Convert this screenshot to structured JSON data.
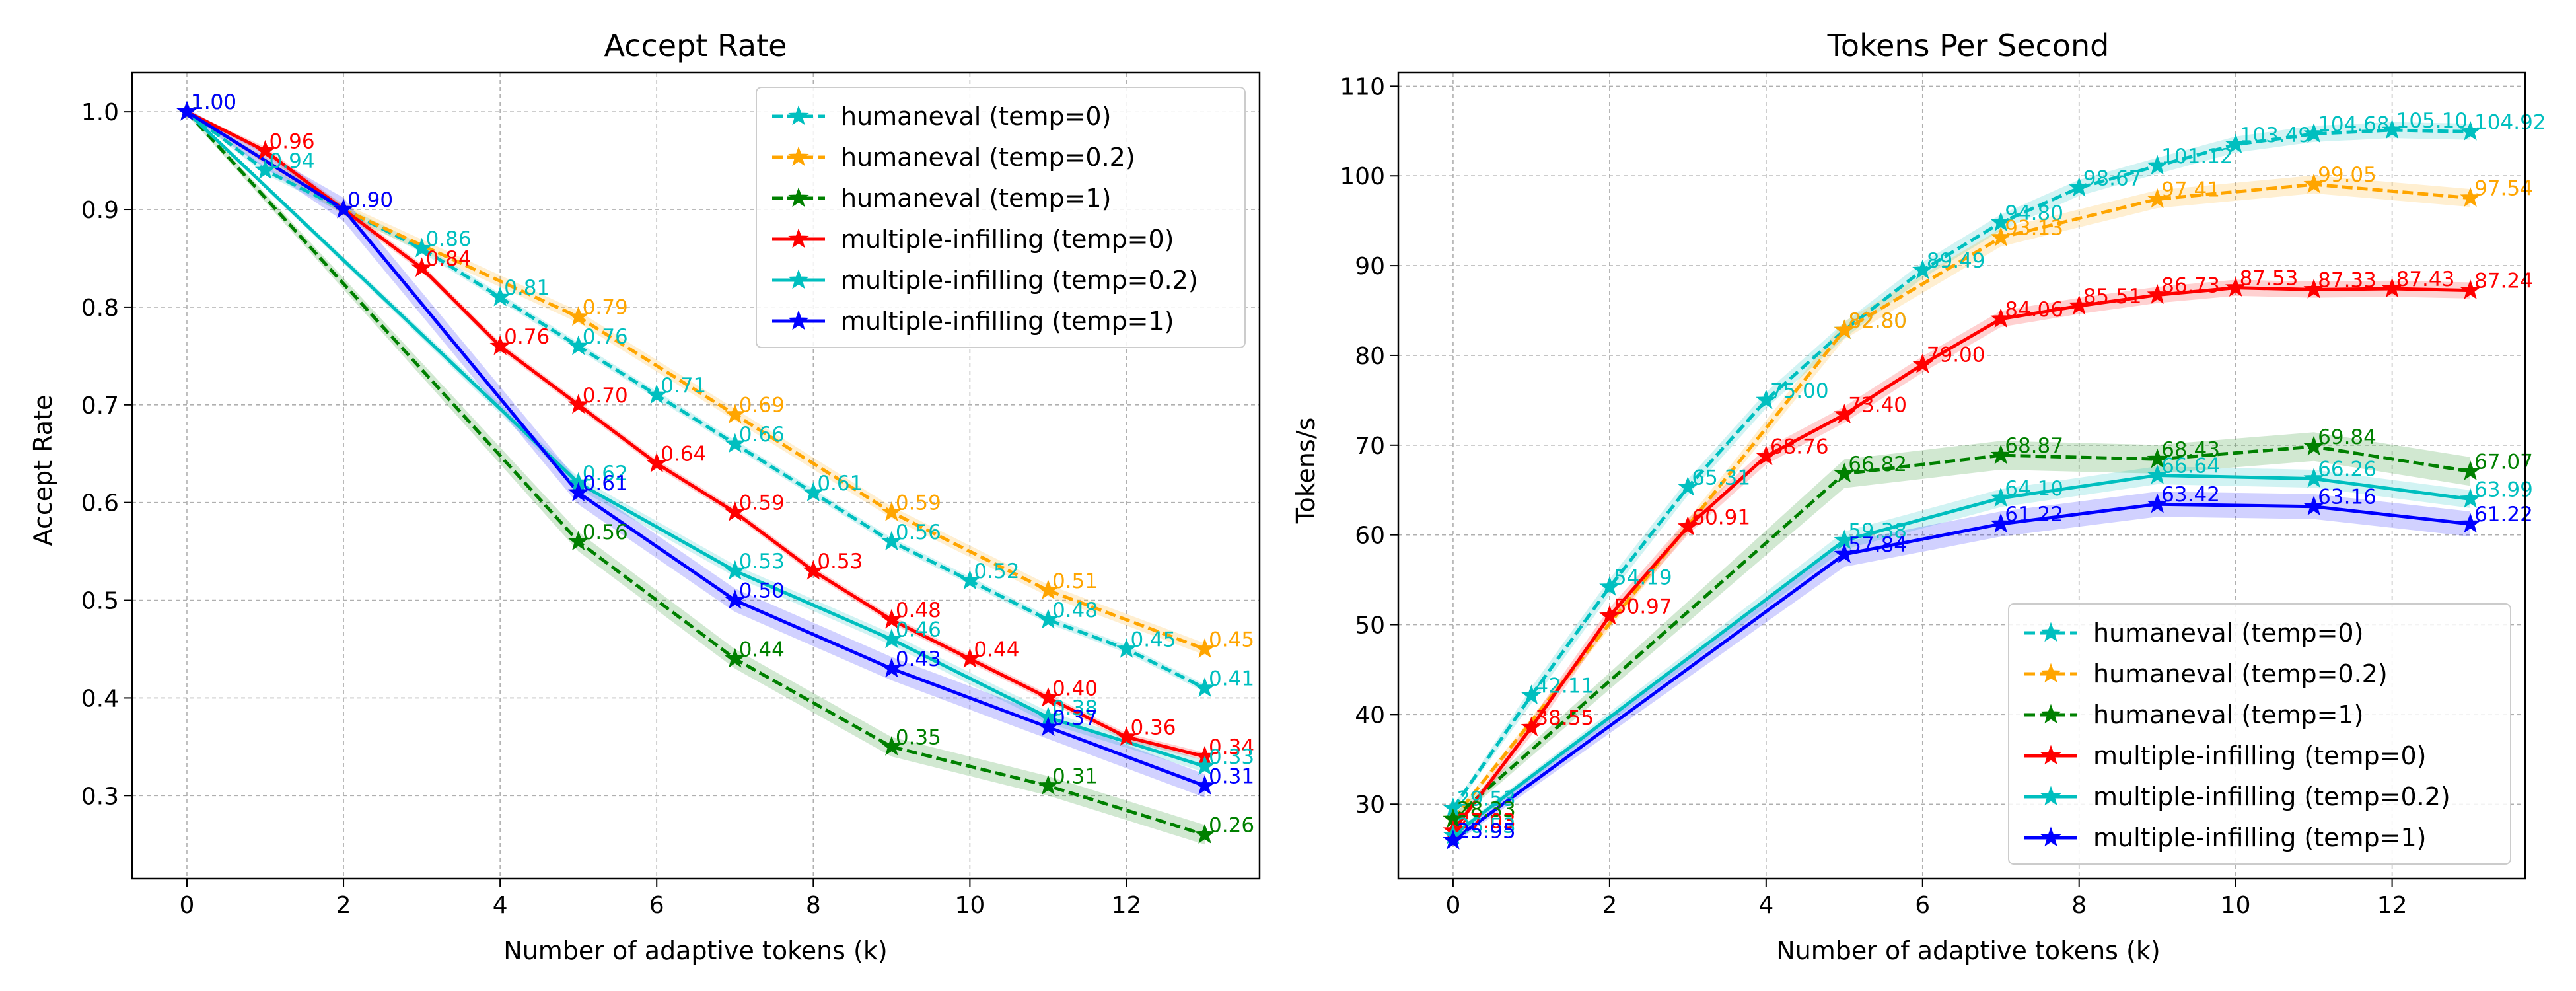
{
  "chart_data": [
    {
      "type": "line",
      "title": "Accept Rate",
      "xlabel": "Number of adaptive tokens (k)",
      "ylabel": "Accept Rate",
      "xlim": [
        -0.7,
        13.7
      ],
      "ylim": [
        0.215,
        1.04
      ],
      "xticks": [
        0,
        2,
        4,
        6,
        8,
        10,
        12
      ],
      "yticks": [
        0.3,
        0.4,
        0.5,
        0.6,
        0.7,
        0.8,
        0.9,
        1.0
      ],
      "ytick_format": "1",
      "grid": true,
      "legend_position": "upper-right",
      "label_format": 2,
      "series": [
        {
          "name": "humaneval (temp=0)",
          "color": "#00bfbf",
          "dashed": true,
          "x": [
            0,
            1,
            3,
            4,
            5,
            6,
            7,
            8,
            9,
            10,
            11,
            12,
            13
          ],
          "y": [
            1.0,
            0.94,
            0.86,
            0.81,
            0.76,
            0.71,
            0.66,
            0.61,
            0.56,
            0.52,
            0.48,
            0.45,
            0.41
          ],
          "band": 0.004
        },
        {
          "name": "humaneval (temp=0.2)",
          "color": "#ffa500",
          "dashed": true,
          "x": [
            0,
            2,
            5,
            7,
            9,
            11,
            13
          ],
          "y": [
            1.0,
            0.9,
            0.79,
            0.69,
            0.59,
            0.51,
            0.45
          ],
          "band": 0.006
        },
        {
          "name": "humaneval (temp=1)",
          "color": "#008000",
          "dashed": true,
          "x": [
            0,
            5,
            7,
            9,
            11,
            13
          ],
          "y": [
            1.0,
            0.56,
            0.44,
            0.35,
            0.31,
            0.26
          ],
          "band": 0.01
        },
        {
          "name": "multiple-infilling (temp=0)",
          "color": "#ff0000",
          "dashed": false,
          "x": [
            0,
            1,
            3,
            4,
            5,
            6,
            7,
            8,
            9,
            10,
            11,
            12,
            13
          ],
          "y": [
            1.0,
            0.96,
            0.84,
            0.76,
            0.7,
            0.64,
            0.59,
            0.53,
            0.48,
            0.44,
            0.4,
            0.36,
            0.34
          ],
          "band": 0.004
        },
        {
          "name": "multiple-infilling (temp=0.2)",
          "color": "#00bfbf",
          "dashed": false,
          "x": [
            0,
            5,
            7,
            9,
            11,
            13
          ],
          "y": [
            1.0,
            0.62,
            0.53,
            0.46,
            0.38,
            0.33
          ],
          "band": 0.006
        },
        {
          "name": "multiple-infilling (temp=1)",
          "color": "#0000ff",
          "dashed": false,
          "x": [
            0,
            2,
            5,
            7,
            9,
            11,
            13
          ],
          "y": [
            1.0,
            0.9,
            0.61,
            0.5,
            0.43,
            0.37,
            0.31
          ],
          "band": 0.012
        }
      ]
    },
    {
      "type": "line",
      "title": "Tokens Per Second",
      "xlabel": "Number of adaptive tokens (k)",
      "ylabel": "Tokens/s",
      "xlim": [
        -0.7,
        13.7
      ],
      "ylim": [
        21.7,
        111.5
      ],
      "xticks": [
        0,
        2,
        4,
        6,
        8,
        10,
        12
      ],
      "yticks": [
        30,
        40,
        50,
        60,
        70,
        80,
        90,
        100,
        110
      ],
      "ytick_format": "0",
      "grid": true,
      "legend_position": "lower-right",
      "label_format": 2,
      "series": [
        {
          "name": "humaneval (temp=0)",
          "color": "#00bfbf",
          "dashed": true,
          "x": [
            0,
            1,
            2,
            3,
            4,
            5,
            6,
            7,
            8,
            9,
            10,
            11,
            12,
            13
          ],
          "y": [
            29.53,
            42.11,
            54.19,
            65.31,
            75.0,
            82.8,
            89.49,
            94.8,
            98.67,
            101.12,
            103.49,
            104.68,
            105.1,
            104.92
          ],
          "band": 0.9
        },
        {
          "name": "humaneval (temp=0.2)",
          "color": "#ffa500",
          "dashed": true,
          "x": [
            0,
            5,
            7,
            9,
            11,
            13
          ],
          "y": [
            28.33,
            82.8,
            93.13,
            97.41,
            99.05,
            97.54
          ],
          "band": 1.0
        },
        {
          "name": "humaneval (temp=1)",
          "color": "#008000",
          "dashed": true,
          "x": [
            0,
            5,
            7,
            9,
            11,
            13
          ],
          "y": [
            28.33,
            66.82,
            68.87,
            68.43,
            69.84,
            67.07
          ],
          "band": 1.6
        },
        {
          "name": "multiple-infilling (temp=0)",
          "color": "#ff0000",
          "dashed": false,
          "x": [
            0,
            1,
            2,
            3,
            4,
            5,
            6,
            7,
            8,
            9,
            10,
            11,
            12,
            13
          ],
          "y": [
            27.03,
            38.55,
            50.97,
            60.91,
            68.76,
            73.4,
            79.0,
            84.06,
            85.51,
            86.73,
            87.53,
            87.33,
            87.43,
            87.24
          ],
          "band": 0.9
        },
        {
          "name": "multiple-infilling (temp=0.2)",
          "color": "#00bfbf",
          "dashed": false,
          "x": [
            0,
            5,
            7,
            9,
            11,
            13
          ],
          "y": [
            26.53,
            59.38,
            64.1,
            66.64,
            66.26,
            63.99
          ],
          "band": 1.0
        },
        {
          "name": "multiple-infilling (temp=1)",
          "color": "#0000ff",
          "dashed": false,
          "x": [
            0,
            5,
            7,
            9,
            11,
            13
          ],
          "y": [
            25.95,
            57.84,
            61.22,
            63.42,
            63.16,
            61.22
          ],
          "band": 1.4
        }
      ]
    }
  ]
}
